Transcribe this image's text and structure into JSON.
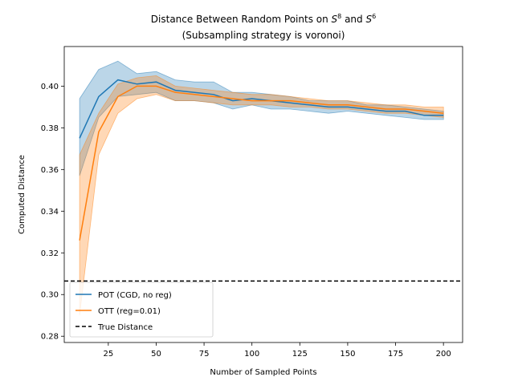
{
  "chart_data": {
    "type": "line",
    "title_line1_prefix": "Distance Between Random Points on ",
    "title_sym_a": "S",
    "title_sup_a": "8",
    "title_line1_mid": " and ",
    "title_sym_b": "S",
    "title_sup_b": "6",
    "title_line2": "(Subsampling strategy is voronoi)",
    "xlabel": "Number of Sampled Points",
    "ylabel": "Computed Distance",
    "xlim": [
      2,
      210
    ],
    "ylim": [
      0.277,
      0.419
    ],
    "xticks": [
      25,
      50,
      75,
      100,
      125,
      150,
      175,
      200
    ],
    "yticks": [
      0.28,
      0.3,
      0.32,
      0.34,
      0.36,
      0.38,
      0.4
    ],
    "x": [
      10,
      20,
      30,
      40,
      50,
      60,
      70,
      80,
      90,
      100,
      110,
      120,
      130,
      140,
      150,
      160,
      170,
      180,
      190,
      200
    ],
    "series": [
      {
        "name": "POT (CGD, no reg)",
        "color": "#1f77b4",
        "values": [
          0.375,
          0.395,
          0.403,
          0.401,
          0.402,
          0.398,
          0.397,
          0.396,
          0.393,
          0.394,
          0.393,
          0.392,
          0.391,
          0.39,
          0.39,
          0.389,
          0.388,
          0.388,
          0.386,
          0.386
        ],
        "lower": [
          0.357,
          0.385,
          0.395,
          0.396,
          0.397,
          0.393,
          0.393,
          0.392,
          0.389,
          0.391,
          0.389,
          0.389,
          0.388,
          0.387,
          0.388,
          0.387,
          0.386,
          0.385,
          0.384,
          0.384
        ],
        "upper": [
          0.394,
          0.408,
          0.412,
          0.406,
          0.407,
          0.403,
          0.402,
          0.402,
          0.397,
          0.397,
          0.396,
          0.395,
          0.393,
          0.393,
          0.393,
          0.391,
          0.391,
          0.39,
          0.389,
          0.388
        ]
      },
      {
        "name": "OTT (reg=0.01)",
        "color": "#ff7f0e",
        "values": [
          0.326,
          0.378,
          0.395,
          0.4,
          0.4,
          0.397,
          0.396,
          0.395,
          0.394,
          0.393,
          0.393,
          0.393,
          0.392,
          0.391,
          0.391,
          0.39,
          0.389,
          0.389,
          0.388,
          0.387
        ],
        "lower": [
          0.29,
          0.367,
          0.387,
          0.394,
          0.396,
          0.393,
          0.393,
          0.392,
          0.391,
          0.391,
          0.391,
          0.39,
          0.39,
          0.389,
          0.389,
          0.388,
          0.387,
          0.387,
          0.386,
          0.385
        ],
        "upper": [
          0.367,
          0.387,
          0.401,
          0.404,
          0.405,
          0.4,
          0.399,
          0.398,
          0.397,
          0.396,
          0.396,
          0.395,
          0.394,
          0.393,
          0.393,
          0.392,
          0.391,
          0.391,
          0.39,
          0.39
        ]
      }
    ],
    "reference_line": {
      "name": "True Distance",
      "y": 0.3065,
      "color": "#000000",
      "style": "dashed"
    },
    "grid": false,
    "legend_position": "lower-left"
  }
}
